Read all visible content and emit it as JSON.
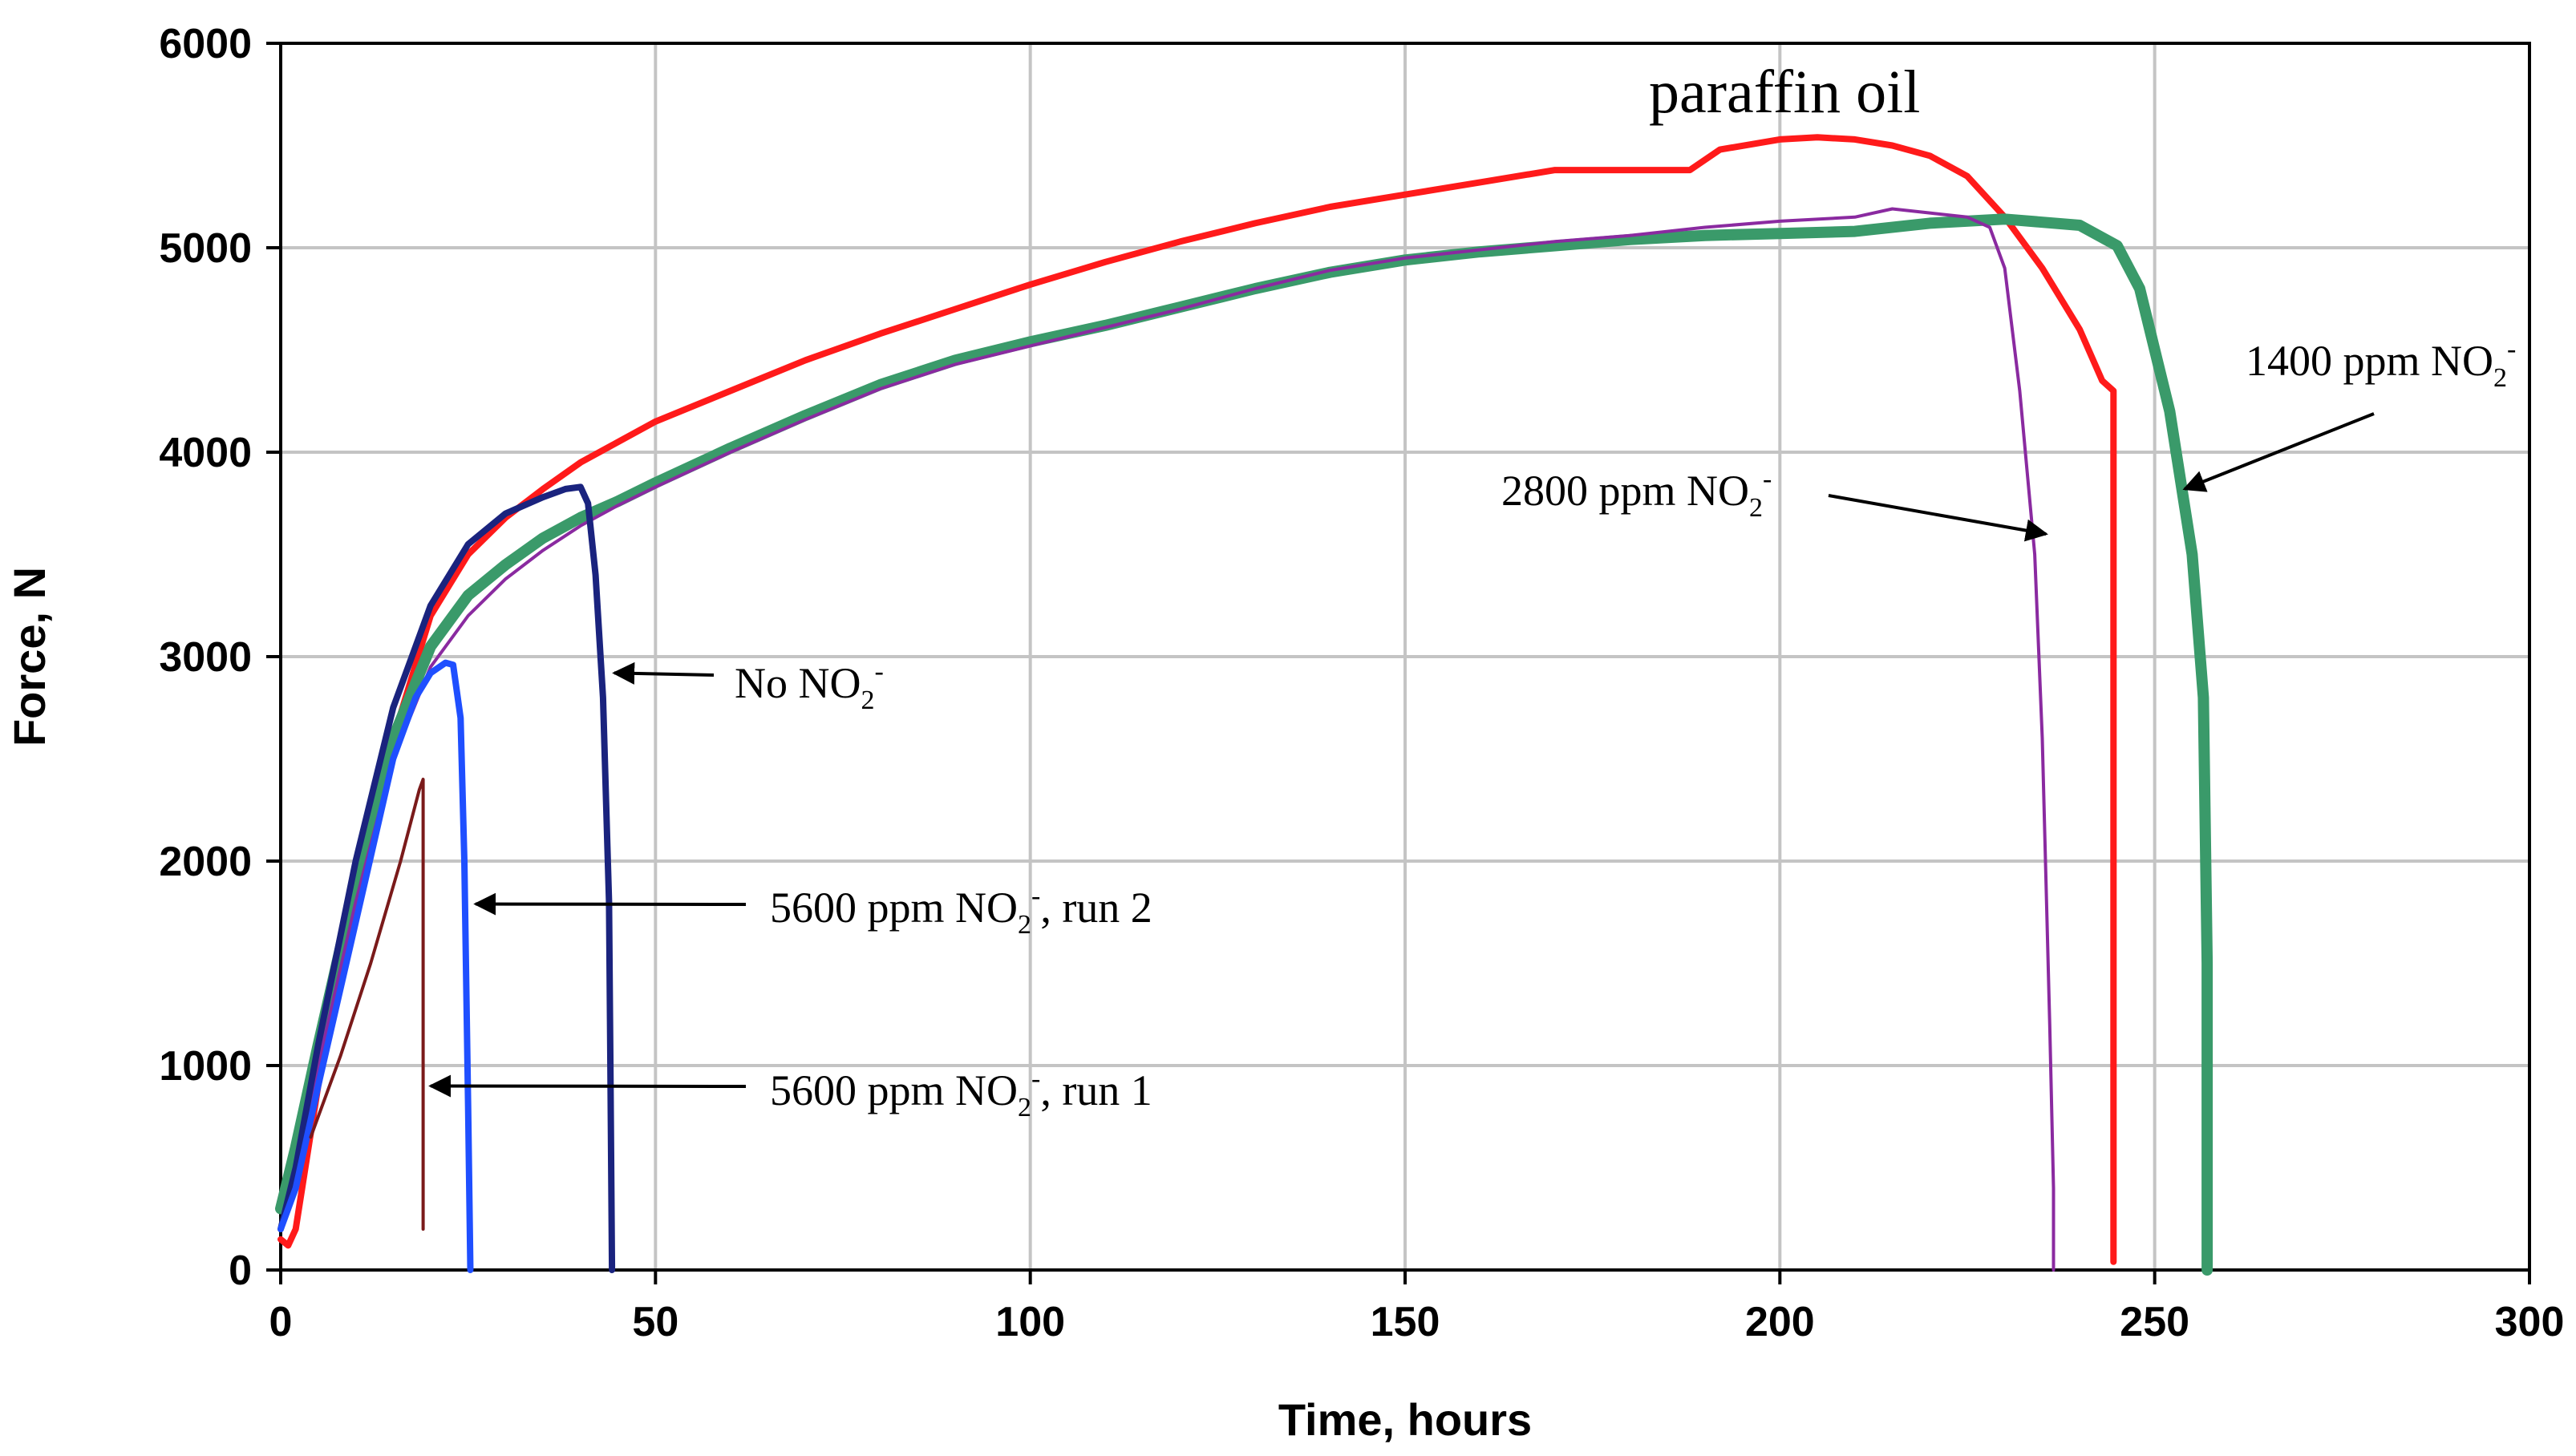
{
  "chart_data": {
    "type": "line",
    "title": "",
    "xlabel": "Time, hours",
    "ylabel": "Force, N",
    "xlim": [
      0,
      300
    ],
    "ylim": [
      0,
      6000
    ],
    "xticks": [
      0,
      50,
      100,
      150,
      200,
      250,
      300
    ],
    "yticks": [
      0,
      1000,
      2000,
      3000,
      4000,
      5000,
      6000
    ],
    "grid": true,
    "series": [
      {
        "name": "paraffin oil",
        "color": "#ff1a1a",
        "x": [
          0,
          1,
          2,
          5,
          10,
          15,
          20,
          25,
          30,
          35,
          40,
          45,
          50,
          60,
          70,
          80,
          90,
          100,
          110,
          120,
          130,
          140,
          150,
          160,
          170,
          180,
          188,
          192,
          200,
          205,
          210,
          215,
          220,
          225,
          230,
          235,
          240,
          243,
          244.5,
          244.5
        ],
        "y": [
          150,
          120,
          200,
          900,
          1800,
          2600,
          3200,
          3500,
          3680,
          3820,
          3950,
          4050,
          4150,
          4300,
          4450,
          4580,
          4700,
          4820,
          4930,
          5030,
          5120,
          5200,
          5260,
          5320,
          5380,
          5380,
          5380,
          5480,
          5530,
          5540,
          5530,
          5500,
          5450,
          5350,
          5150,
          4900,
          4600,
          4350,
          4300,
          40
        ]
      },
      {
        "name": "1400 ppm NO2-",
        "color": "#3a9a6a",
        "x": [
          0,
          2,
          5,
          10,
          15,
          20,
          25,
          30,
          35,
          40,
          45,
          50,
          60,
          70,
          80,
          90,
          100,
          110,
          120,
          130,
          140,
          150,
          160,
          170,
          180,
          190,
          200,
          210,
          220,
          230,
          240,
          245,
          248,
          252,
          255,
          256.5,
          257,
          257
        ],
        "y": [
          300,
          600,
          1100,
          1900,
          2600,
          3050,
          3300,
          3450,
          3580,
          3680,
          3760,
          3850,
          4020,
          4180,
          4330,
          4450,
          4540,
          4620,
          4710,
          4800,
          4880,
          4940,
          4980,
          5010,
          5040,
          5060,
          5070,
          5080,
          5120,
          5140,
          5110,
          5010,
          4800,
          4200,
          3500,
          2800,
          1500,
          0
        ]
      },
      {
        "name": "2800 ppm NO2-",
        "color": "#8a2aa0",
        "x": [
          0,
          2,
          5,
          10,
          15,
          20,
          25,
          30,
          35,
          40,
          45,
          50,
          60,
          70,
          80,
          90,
          100,
          110,
          120,
          130,
          140,
          150,
          160,
          170,
          180,
          190,
          200,
          210,
          215,
          220,
          225,
          228,
          230,
          232,
          234,
          235,
          236,
          236.5,
          236.5
        ],
        "y": [
          200,
          500,
          1000,
          1800,
          2500,
          2950,
          3200,
          3380,
          3520,
          3640,
          3740,
          3830,
          4000,
          4160,
          4310,
          4430,
          4520,
          4610,
          4700,
          4800,
          4890,
          4950,
          4990,
          5030,
          5060,
          5100,
          5130,
          5150,
          5190,
          5170,
          5150,
          5100,
          4900,
          4300,
          3500,
          2600,
          1200,
          400,
          0
        ]
      },
      {
        "name": "No NO2-",
        "color": "#1a237e",
        "x": [
          0,
          2,
          5,
          10,
          15,
          20,
          25,
          30,
          35,
          38,
          40,
          41,
          42,
          43,
          43.8,
          44,
          44.2
        ],
        "y": [
          200,
          500,
          1100,
          2000,
          2750,
          3250,
          3550,
          3700,
          3780,
          3820,
          3830,
          3750,
          3400,
          2800,
          1800,
          900,
          0
        ]
      },
      {
        "name": "5600 ppm NO2-, run 2",
        "color": "#1f4fff",
        "x": [
          0,
          2,
          5,
          10,
          15,
          18,
          20,
          22,
          23,
          24,
          24.5,
          25,
          25.3
        ],
        "y": [
          200,
          400,
          900,
          1700,
          2500,
          2800,
          2920,
          2970,
          2960,
          2700,
          2000,
          800,
          0
        ]
      },
      {
        "name": "5600 ppm NO2-, run 1",
        "color": "#7a1a1a",
        "x": [
          4,
          8,
          12,
          16,
          18.5,
          19,
          19
        ],
        "y": [
          650,
          1050,
          1500,
          2000,
          2350,
          2400,
          200
        ]
      }
    ],
    "annotations": [
      {
        "label": "paraffin oil",
        "target": "paraffin oil",
        "x": 210,
        "y": 5570,
        "arrow": false
      },
      {
        "label": "1400 ppm NO2-",
        "target": "1400 ppm NO2-",
        "x": 254,
        "y": 3820,
        "arrow": true
      },
      {
        "label": "2800 ppm NO2-",
        "target": "2800 ppm NO2-",
        "x": 235.5,
        "y": 3600,
        "arrow": true
      },
      {
        "label": "No NO2-",
        "target": "No NO2-",
        "x": 44.5,
        "y": 2920,
        "arrow": true
      },
      {
        "label": "5600 ppm NO2-, run 2",
        "target": "5600 ppm NO2-, run 2",
        "x": 26,
        "y": 1790,
        "arrow": true
      },
      {
        "label": "5600 ppm NO2-, run 1",
        "target": "5600 ppm NO2-, run 1",
        "x": 20,
        "y": 900,
        "arrow": true
      }
    ]
  }
}
